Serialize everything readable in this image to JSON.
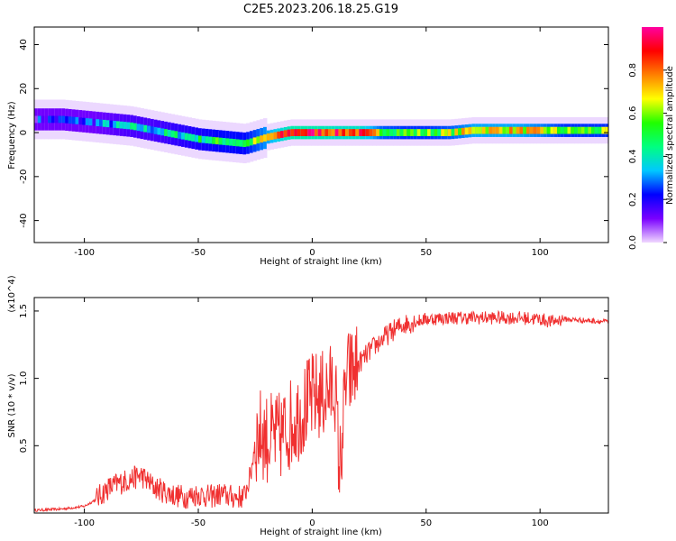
{
  "figure": {
    "title": "C2E5.2023.206.18.25.G19"
  },
  "chart_data": [
    {
      "type": "heatmap",
      "xlabel": "Height of straight line (km)",
      "ylabel": "Frequency (Hz)",
      "xlim": [
        -122,
        130
      ],
      "ylim": [
        -50,
        48
      ],
      "xticks": [
        -100,
        -50,
        0,
        50,
        100
      ],
      "yticks": [
        -40,
        -20,
        0,
        20,
        40
      ],
      "colorbar": {
        "label": "Normalized spectral amplitude",
        "range": [
          0,
          1
        ],
        "ticks": [
          "0.0",
          "0.2",
          "0.4",
          "0.6",
          "0.8"
        ],
        "tick_values": [
          0,
          0.2,
          0.4,
          0.6,
          0.8
        ],
        "colors": [
          "#f0d8ff",
          "#7a00ff",
          "#0000ff",
          "#00c8ff",
          "#00ff80",
          "#20ff00",
          "#ffff00",
          "#ff8000",
          "#ff0000",
          "#ff00a0"
        ]
      },
      "ridge": {
        "x": [
          -110,
          -100,
          -90,
          -80,
          -70,
          -60,
          -50,
          -40,
          -30,
          -20,
          -10,
          0,
          10,
          20,
          30,
          40,
          50,
          60,
          70,
          80,
          90,
          100,
          110,
          120,
          130
        ],
        "frequency": [
          6,
          5,
          4,
          3,
          1,
          -1,
          -3,
          -4,
          -5,
          -2,
          0,
          0,
          0,
          0,
          0,
          0,
          0,
          0,
          1,
          1,
          1,
          1,
          1,
          1,
          1
        ],
        "amplitude": [
          0.2,
          0.25,
          0.3,
          0.35,
          0.35,
          0.4,
          0.45,
          0.5,
          0.5,
          0.7,
          0.9,
          0.9,
          0.85,
          0.85,
          0.6,
          0.55,
          0.55,
          0.6,
          0.7,
          0.7,
          0.7,
          0.65,
          0.55,
          0.55,
          0.55
        ]
      }
    },
    {
      "type": "line",
      "xlabel": "Height of straight line (km)",
      "ylabel": "SNR (10 * v/v)",
      "multiplier": "(x10^4)",
      "xlim": [
        -122,
        130
      ],
      "ylim": [
        0,
        1.6
      ],
      "xticks": [
        -100,
        -50,
        0,
        50,
        100
      ],
      "yticks": [
        0.5,
        1.0,
        1.5
      ],
      "ytick_labels": [
        "0.5",
        "1.0",
        "1.5"
      ],
      "color": "#f03030",
      "x": [
        -122,
        -110,
        -100,
        -95,
        -90,
        -85,
        -80,
        -75,
        -70,
        -65,
        -60,
        -55,
        -50,
        -45,
        -40,
        -35,
        -30,
        -27,
        -25,
        -22,
        -20,
        -15,
        -10,
        -5,
        0,
        5,
        10,
        12,
        15,
        20,
        25,
        30,
        35,
        40,
        50,
        60,
        70,
        80,
        90,
        100,
        105,
        110,
        120,
        130
      ],
      "y": [
        0.02,
        0.03,
        0.05,
        0.1,
        0.18,
        0.22,
        0.25,
        0.28,
        0.2,
        0.16,
        0.13,
        0.12,
        0.14,
        0.12,
        0.14,
        0.12,
        0.12,
        0.28,
        0.55,
        0.6,
        0.55,
        0.55,
        0.65,
        0.75,
        0.85,
        0.88,
        0.95,
        0.3,
        1.0,
        1.1,
        1.2,
        1.28,
        1.35,
        1.4,
        1.44,
        1.45,
        1.45,
        1.45,
        1.45,
        1.44,
        1.42,
        1.44,
        1.43,
        1.42
      ]
    }
  ]
}
